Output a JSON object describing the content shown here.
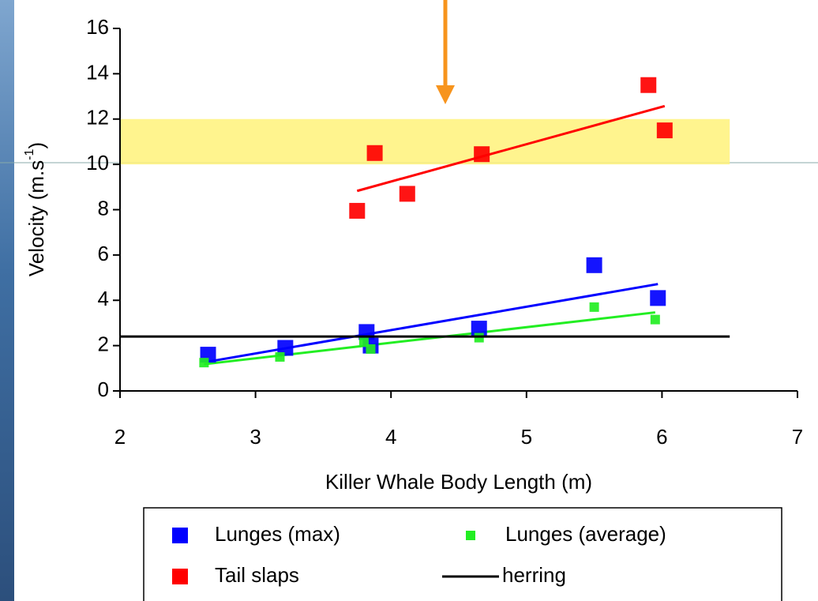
{
  "chart_data": {
    "type": "scatter",
    "xlabel": "Killer Whale Body Length (m)",
    "ylabel": {
      "text": "Velocity (m.s",
      "sup": "-1",
      "tail": ")"
    },
    "xlim": [
      2,
      7
    ],
    "xticks": [
      2,
      3,
      4,
      5,
      6,
      7
    ],
    "ylim": [
      0,
      16
    ],
    "yticks": [
      0,
      2,
      4,
      6,
      8,
      10,
      12,
      14,
      16
    ],
    "highlight_band": {
      "xlim": [
        2,
        6.5
      ],
      "ylim": [
        10,
        12
      ],
      "color": "#fff27a"
    },
    "series": [
      {
        "name": "Lunges (max)",
        "color": "#0000ff",
        "marker": "square",
        "size": 20,
        "trendline": true,
        "x": [
          2.65,
          3.22,
          3.82,
          3.85,
          4.65,
          5.5,
          5.97
        ],
        "values": [
          1.6,
          1.9,
          2.6,
          2.0,
          2.75,
          5.55,
          4.1
        ]
      },
      {
        "name": "Lunges (average)",
        "color": "#22ee22",
        "marker": "square",
        "size": 12,
        "trendline": true,
        "x": [
          2.62,
          3.18,
          3.8,
          3.85,
          4.65,
          5.5,
          5.95
        ],
        "values": [
          1.25,
          1.5,
          2.15,
          1.85,
          2.35,
          3.7,
          3.15
        ]
      },
      {
        "name": "Tail slaps",
        "color": "#ff0000",
        "marker": "square",
        "size": 20,
        "trendline": true,
        "x": [
          3.75,
          3.88,
          4.12,
          4.67,
          5.9,
          6.02
        ],
        "values": [
          7.95,
          10.5,
          8.7,
          10.45,
          13.5,
          11.5
        ]
      },
      {
        "name": "herring",
        "color": "#000000",
        "marker": "line",
        "x": [
          2,
          6.5
        ],
        "values": [
          2.4,
          2.4
        ]
      }
    ]
  }
}
